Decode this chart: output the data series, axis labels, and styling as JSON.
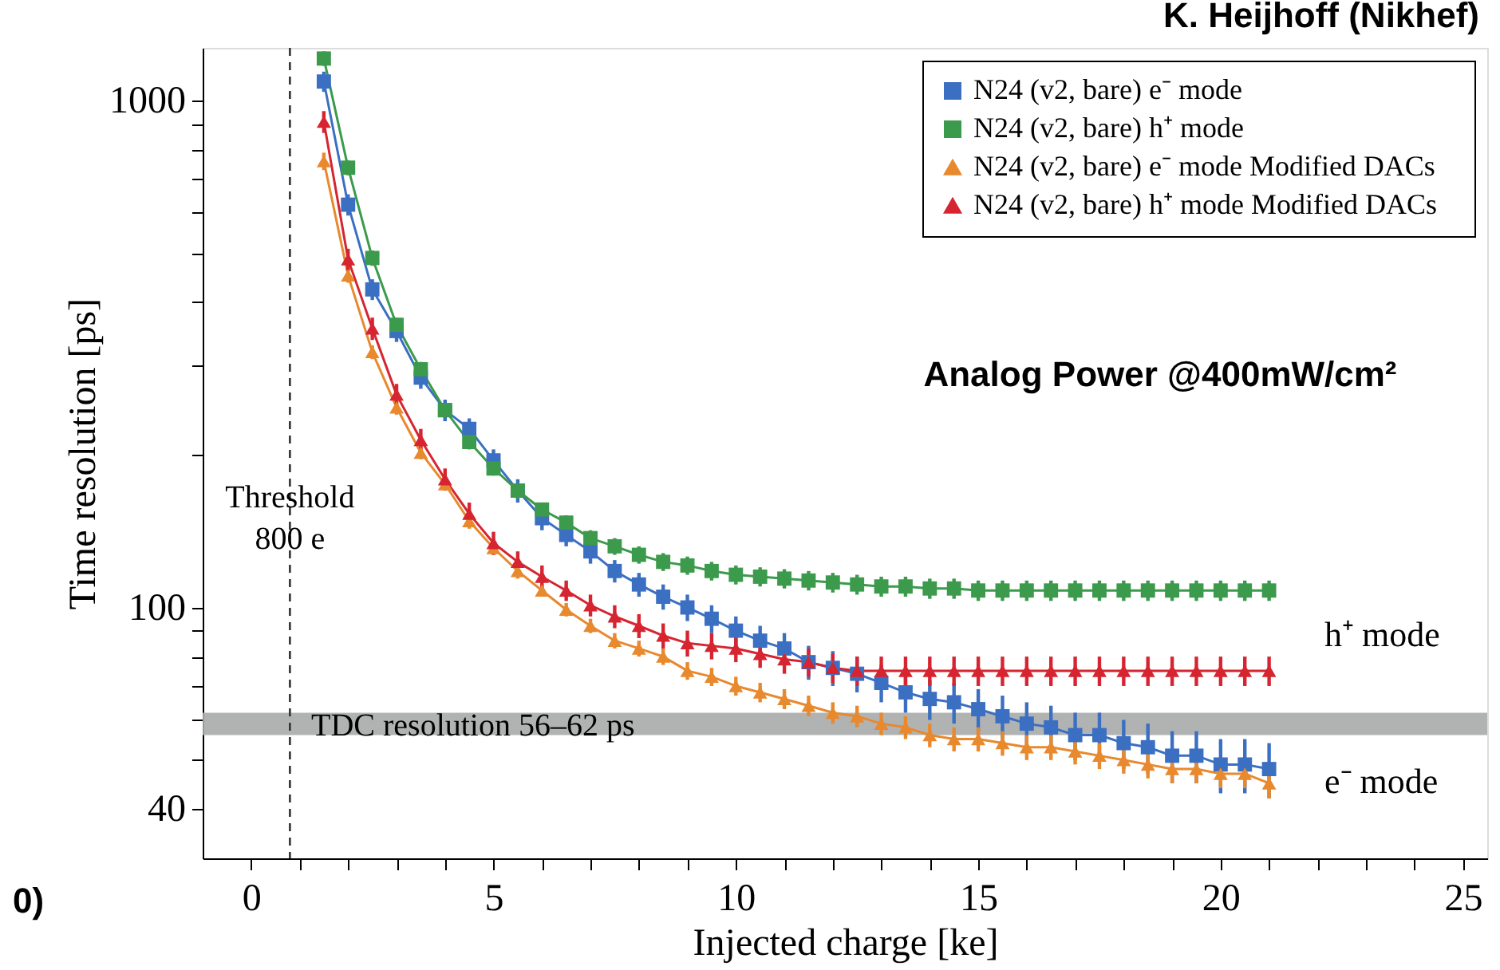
{
  "chart_data": {
    "type": "line",
    "xlabel": "Injected charge [ke]",
    "ylabel": "Time resolution [ps]",
    "log": "y",
    "grid": false,
    "legend": "top right",
    "xlim": [
      -1,
      25.5
    ],
    "ylim": [
      32,
      1270
    ],
    "xticks": [
      0,
      {
        "value": 1,
        "label": null
      },
      {
        "value": 2,
        "label": null
      },
      {
        "value": 3,
        "label": null
      },
      {
        "value": 4,
        "label": null
      },
      5,
      {
        "value": 6,
        "label": null
      },
      {
        "value": 7,
        "label": null
      },
      {
        "value": 8,
        "label": null
      },
      {
        "value": 9,
        "label": null
      },
      10,
      {
        "value": 11,
        "label": null
      },
      {
        "value": 12,
        "label": null
      },
      {
        "value": 13,
        "label": null
      },
      {
        "value": 14,
        "label": null
      },
      15,
      {
        "value": 16,
        "label": null
      },
      {
        "value": 17,
        "label": null
      },
      {
        "value": 18,
        "label": null
      },
      {
        "value": 19,
        "label": null
      },
      20,
      {
        "value": 21,
        "label": null
      },
      {
        "value": 22,
        "label": null
      },
      {
        "value": 23,
        "label": null
      },
      {
        "value": 24,
        "label": null
      },
      25
    ],
    "yticks": [
      40,
      {
        "value": 50,
        "label": null
      },
      {
        "value": 60,
        "label": null
      },
      {
        "value": 70,
        "label": null
      },
      {
        "value": 80,
        "label": null
      },
      {
        "value": 90,
        "label": null
      },
      100,
      {
        "value": 200,
        "label": null
      },
      {
        "value": 300,
        "label": null
      },
      {
        "value": 400,
        "label": null
      },
      {
        "value": 500,
        "label": null
      },
      {
        "value": 600,
        "label": null
      },
      {
        "value": 700,
        "label": null
      },
      {
        "value": 800,
        "label": null
      },
      {
        "value": 900,
        "label": null
      },
      1000
    ],
    "x": [
      1.5,
      2,
      2.5,
      3,
      3.5,
      4,
      4.5,
      5,
      5.5,
      6,
      6.5,
      7,
      7.5,
      8,
      8.5,
      9,
      9.5,
      10,
      10.5,
      11,
      11.5,
      12,
      12.5,
      13,
      13.5,
      14,
      14.5,
      15,
      15.5,
      16,
      16.5,
      17,
      17.5,
      18,
      18.5,
      19,
      19.5,
      20,
      20.5,
      21
    ],
    "series": [
      {
        "name": "N24  (v2, bare)  e⁻ mode",
        "color": "#3b6fc2",
        "marker": "square",
        "values": [
          1090,
          623,
          424,
          351,
          284,
          245,
          225,
          195,
          170,
          150,
          139,
          129,
          118,
          111,
          105,
          100,
          95,
          90,
          86,
          83,
          78,
          76,
          74,
          71,
          68,
          66,
          65,
          63,
          61,
          59,
          58,
          56,
          56,
          54,
          53,
          51,
          51,
          49,
          49,
          48
        ],
        "errors": [
          50,
          30,
          20,
          17,
          14,
          12,
          11,
          10,
          9,
          8,
          7,
          7,
          6,
          6,
          6,
          6,
          6,
          6,
          6,
          6,
          6,
          6,
          6,
          6,
          6,
          6,
          6,
          6,
          6,
          6,
          6,
          6,
          6,
          6,
          6,
          6,
          6,
          6,
          6,
          6
        ]
      },
      {
        "name": "N24  (v2, bare)  h⁺ mode",
        "color": "#3c9a4c",
        "marker": "square",
        "values": [
          1210,
          737,
          489,
          361,
          295,
          245,
          212,
          188,
          170,
          156,
          147,
          137,
          132,
          127,
          123,
          121,
          118,
          116,
          115,
          114,
          113,
          112,
          111,
          110,
          110,
          109,
          109,
          108,
          108,
          108,
          108,
          108,
          108,
          108,
          108,
          108,
          108,
          108,
          108,
          108
        ],
        "errors": [
          40,
          25,
          17,
          12,
          10,
          8,
          7,
          6,
          6,
          5,
          5,
          5,
          5,
          5,
          5,
          5,
          5,
          5,
          5,
          5,
          5,
          5,
          5,
          5,
          5,
          5,
          5,
          5,
          5,
          5,
          5,
          5,
          5,
          5,
          5,
          5,
          5,
          5,
          5,
          5
        ]
      },
      {
        "name": "N24  (v2, bare)  e⁻ mode  Modified DACs",
        "color": "#e8892e",
        "marker": "triangle",
        "values": [
          759,
          452,
          319,
          248,
          202,
          175,
          148,
          131,
          118,
          108,
          99,
          92,
          86,
          83,
          80,
          75,
          73,
          70,
          68,
          66,
          64,
          62,
          61,
          59,
          58,
          56,
          55,
          55,
          54,
          53,
          53,
          52,
          51,
          50,
          49,
          48,
          48,
          47,
          47,
          45
        ],
        "errors": [
          30,
          15,
          10,
          8,
          6,
          5,
          5,
          4,
          4,
          3,
          3,
          3,
          3,
          3,
          3,
          3,
          3,
          3,
          3,
          3,
          3,
          3,
          3,
          3,
          3,
          3,
          3,
          3,
          3,
          3,
          3,
          3,
          3,
          3,
          3,
          3,
          3,
          3,
          3,
          3
        ]
      },
      {
        "name": "N24  (v2, bare)  h⁺ mode  Modified DACs",
        "color": "#d62530",
        "marker": "triangle",
        "values": [
          908,
          486,
          355,
          263,
          214,
          179,
          153,
          134,
          123,
          115,
          108,
          101,
          96,
          92,
          88,
          85,
          84,
          83,
          81,
          79,
          78,
          76,
          75,
          75,
          75,
          75,
          75,
          75,
          75,
          75,
          75,
          75,
          75,
          75,
          75,
          75,
          75,
          75,
          75,
          75
        ],
        "errors": [
          45,
          24,
          18,
          13,
          11,
          9,
          8,
          7,
          6,
          6,
          5,
          5,
          5,
          5,
          5,
          5,
          5,
          5,
          5,
          5,
          5,
          5,
          5,
          5,
          5,
          5,
          5,
          5,
          5,
          5,
          5,
          5,
          5,
          5,
          5,
          5,
          5,
          5,
          5,
          5
        ]
      }
    ],
    "ref_lines": [
      {
        "axis": "x",
        "value": 0.8,
        "label": "Threshold\n800 e",
        "line_style": "dashed",
        "color": "#333333"
      }
    ],
    "bands": [
      {
        "axis": "y",
        "from": 56,
        "to": 62,
        "label": "TDC resolution  56–62 ps",
        "color": "#a9abab"
      }
    ],
    "annotations": [
      "K. Heijhoff (Nikhef)",
      "Analog Power @400mW/cm²",
      "0)",
      "h⁺ mode",
      "e⁻ mode"
    ]
  }
}
